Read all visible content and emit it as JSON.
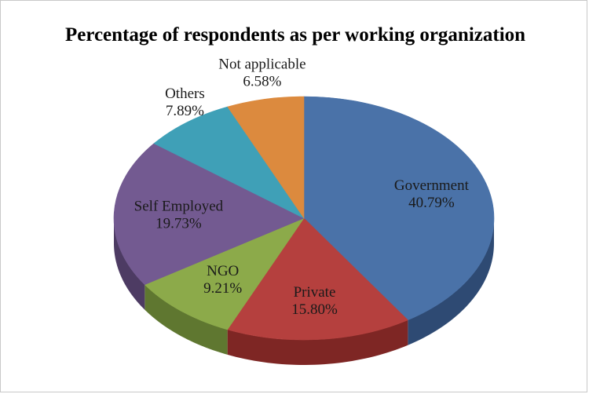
{
  "chart_data": {
    "type": "pie",
    "title": "Percentage of respondents as per working organization",
    "slices": [
      {
        "label": "Government",
        "value_text": "40.79%",
        "value": 40.79,
        "color": "#4A72A8",
        "side_color": "#2E4A73"
      },
      {
        "label": "Private",
        "value_text": "15.80%",
        "value": 15.8,
        "color": "#B5403E",
        "side_color": "#7E2624"
      },
      {
        "label": "NGO",
        "value_text": "9.21%",
        "value": 9.21,
        "color": "#8CAA4A",
        "side_color": "#5F7730"
      },
      {
        "label": "Self Employed",
        "value_text": "19.73%",
        "value": 19.73,
        "color": "#735A91",
        "side_color": "#4D3B63"
      },
      {
        "label": "Others",
        "value_text": "7.89%",
        "value": 7.89,
        "color": "#3FA0B7",
        "side_color": "#287082"
      },
      {
        "label": "Not applicable",
        "value_text": "6.58%",
        "value": 6.58,
        "color": "#DC8A3E",
        "side_color": "#A55F22"
      }
    ],
    "legend": "none",
    "style": "3d"
  }
}
